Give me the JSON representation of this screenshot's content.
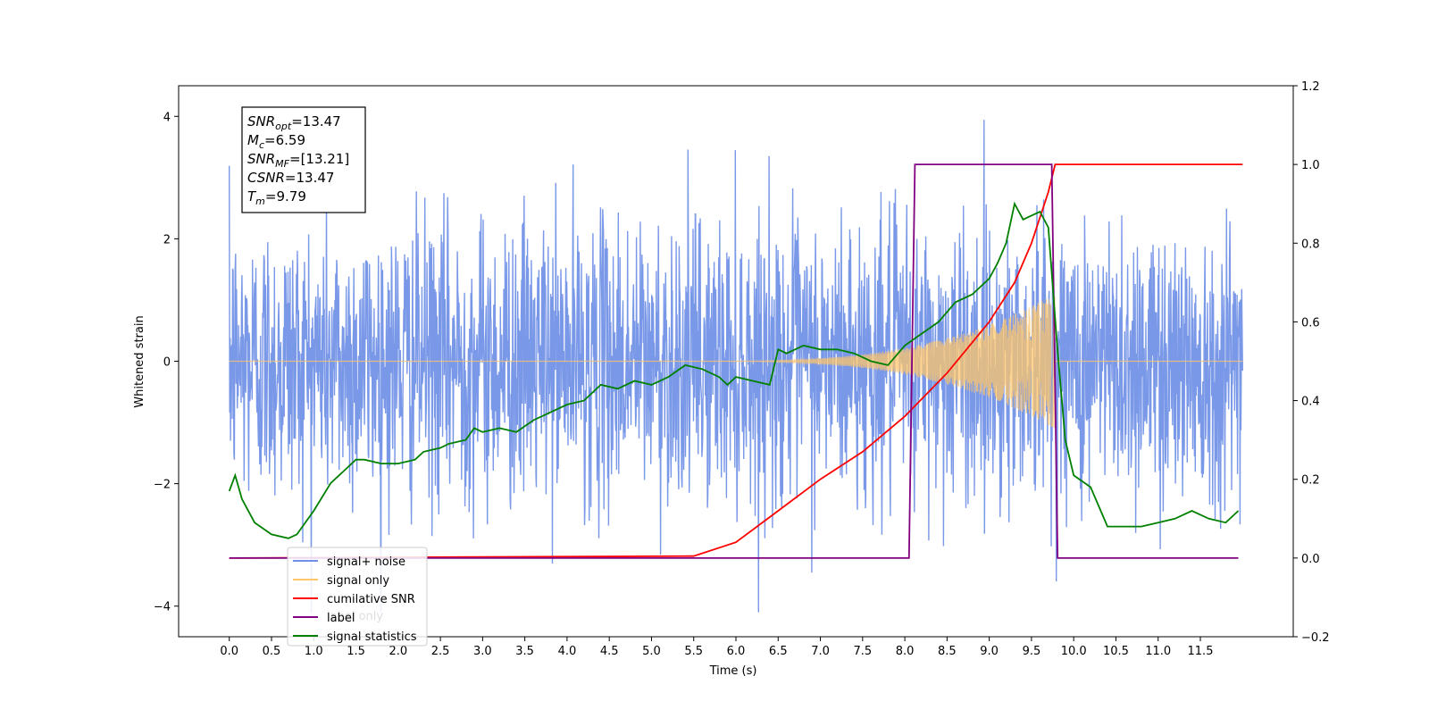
{
  "chart_data": {
    "type": "line",
    "xlabel": "Time (s)",
    "ylabel": "Whitened strain",
    "xlim": [
      -0.6,
      12.6
    ],
    "ylim": [
      -4.5,
      4.5
    ],
    "y2lim": [
      -0.2,
      1.2
    ],
    "xticks": [
      "0.0",
      "0.5",
      "1.0",
      "1.5",
      "2.0",
      "2.5",
      "3.0",
      "3.5",
      "4.0",
      "4.5",
      "5.0",
      "5.5",
      "6.0",
      "6.5",
      "7.0",
      "7.5",
      "8.0",
      "8.5",
      "9.0",
      "9.5",
      "10.0",
      "10.5",
      "11.0",
      "11.5"
    ],
    "yticks": [
      "4",
      "2",
      "0",
      "−2",
      "−4"
    ],
    "y2ticks": [
      "1.2",
      "1.0",
      "0.8",
      "0.6",
      "0.4",
      "0.2",
      "0.0",
      "−0.2"
    ],
    "stats": [
      {
        "base": "SNR",
        "sub": "opt",
        "value": "=13.47"
      },
      {
        "base": "M",
        "sub": "c",
        "value": "=6.59"
      },
      {
        "base": "SNR",
        "sub": "MF",
        "value": "=[13.21]"
      },
      {
        "base": "CSNR",
        "sub": "",
        "value": "=13.47"
      },
      {
        "base": "T",
        "sub": "m",
        "value": "=9.79"
      }
    ],
    "legend": [
      {
        "label": "signal+ noise",
        "color": "#6f8fe6"
      },
      {
        "label": "signal only",
        "color": "#ffc66b"
      },
      {
        "label": "cumilative SNR",
        "color": "#ff0000"
      },
      {
        "label": "label",
        "color": "#800080"
      },
      {
        "label": "signal statistics",
        "color": "#008000"
      }
    ],
    "legend_placement": "lower-left",
    "hidden_legend_text": "label only",
    "series": [
      {
        "name": "signal+ noise",
        "axis": "left",
        "color": "#6f8fe6",
        "note": "white-noise strain, approx. range -4.1 to 4.1 over t = 0 to 12 s"
      },
      {
        "name": "signal only",
        "axis": "left",
        "color": "#ffc66b",
        "chirp": {
          "start": 5.5,
          "merger": 9.78,
          "peak_amplitude": 1.1
        }
      },
      {
        "name": "cumilative SNR",
        "axis": "right",
        "color": "#ff0000",
        "x": [
          0.0,
          5.5,
          6.0,
          6.5,
          7.0,
          7.5,
          8.0,
          8.5,
          9.0,
          9.3,
          9.5,
          9.7,
          9.78,
          12.0
        ],
        "y": [
          0.0,
          0.005,
          0.04,
          0.12,
          0.2,
          0.27,
          0.36,
          0.47,
          0.6,
          0.7,
          0.8,
          0.93,
          1.0,
          1.0
        ]
      },
      {
        "name": "label",
        "axis": "right",
        "color": "#800080",
        "x": [
          0.0,
          8.05,
          8.12,
          9.74,
          9.81,
          11.95
        ],
        "y": [
          0.0,
          0.0,
          1.0,
          1.0,
          0.0,
          0.0
        ]
      },
      {
        "name": "signal statistics",
        "axis": "right",
        "color": "#008000",
        "x": [
          0.0,
          0.07,
          0.15,
          0.3,
          0.5,
          0.7,
          0.8,
          1.0,
          1.2,
          1.4,
          1.5,
          1.6,
          1.8,
          2.0,
          2.2,
          2.3,
          2.5,
          2.6,
          2.8,
          2.9,
          3.0,
          3.2,
          3.4,
          3.6,
          3.8,
          4.0,
          4.2,
          4.4,
          4.6,
          4.8,
          5.0,
          5.2,
          5.4,
          5.6,
          5.8,
          5.9,
          6.0,
          6.2,
          6.4,
          6.5,
          6.6,
          6.8,
          7.0,
          7.2,
          7.4,
          7.6,
          7.8,
          8.0,
          8.2,
          8.4,
          8.6,
          8.8,
          9.0,
          9.1,
          9.2,
          9.3,
          9.4,
          9.5,
          9.6,
          9.7,
          9.8,
          9.9,
          10.0,
          10.2,
          10.4,
          10.6,
          10.8,
          11.0,
          11.2,
          11.4,
          11.6,
          11.8,
          11.95
        ],
        "y": [
          0.17,
          0.21,
          0.15,
          0.09,
          0.06,
          0.05,
          0.06,
          0.12,
          0.19,
          0.23,
          0.25,
          0.25,
          0.24,
          0.24,
          0.25,
          0.27,
          0.28,
          0.29,
          0.3,
          0.33,
          0.32,
          0.33,
          0.32,
          0.35,
          0.37,
          0.39,
          0.4,
          0.44,
          0.43,
          0.45,
          0.44,
          0.46,
          0.49,
          0.48,
          0.46,
          0.44,
          0.46,
          0.45,
          0.44,
          0.53,
          0.52,
          0.54,
          0.53,
          0.53,
          0.52,
          0.5,
          0.49,
          0.54,
          0.57,
          0.6,
          0.65,
          0.67,
          0.71,
          0.75,
          0.8,
          0.9,
          0.86,
          0.87,
          0.88,
          0.84,
          0.55,
          0.3,
          0.21,
          0.18,
          0.08,
          0.08,
          0.08,
          0.09,
          0.1,
          0.12,
          0.1,
          0.09,
          0.12
        ]
      }
    ]
  }
}
